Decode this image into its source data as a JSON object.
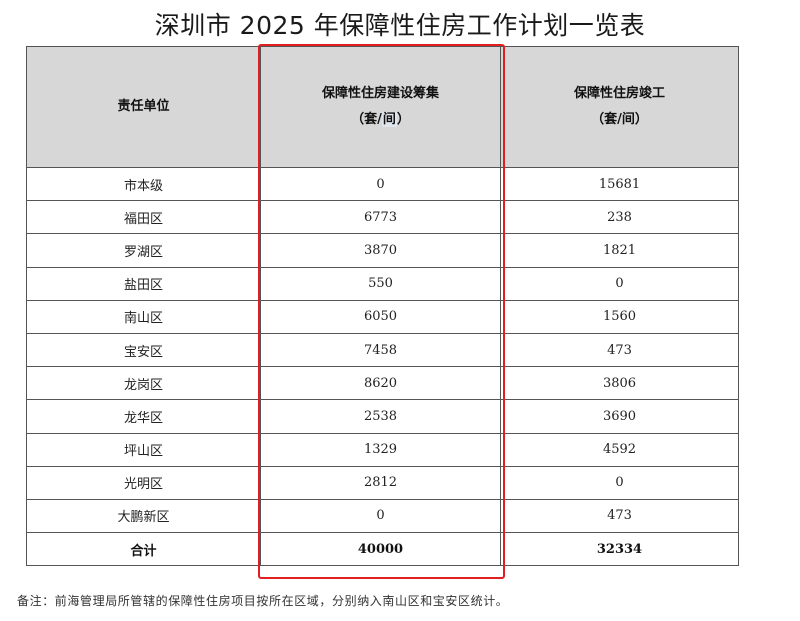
{
  "title": "深圳市 2025 年保障性住房工作计划一览表",
  "table": {
    "headers": {
      "unit": "责任单位",
      "construction_line1": "保障性住房建设筹集",
      "construction_line2_pre": "（套/",
      "construction_line2_hl": "间",
      "construction_line2_post": "）",
      "completion_line1": "保障性住房竣工",
      "completion_line2": "（套/间）"
    },
    "rows": [
      {
        "unit": "市本级",
        "construction": "0",
        "completion": "15681"
      },
      {
        "unit": "福田区",
        "construction": "6773",
        "completion": "238"
      },
      {
        "unit": "罗湖区",
        "construction": "3870",
        "completion": "1821"
      },
      {
        "unit": "盐田区",
        "construction": "550",
        "completion": "0"
      },
      {
        "unit": "南山区",
        "construction": "6050",
        "completion": "1560"
      },
      {
        "unit": "宝安区",
        "construction": "7458",
        "completion": "473"
      },
      {
        "unit": "龙岗区",
        "construction": "8620",
        "completion": "3806"
      },
      {
        "unit": "龙华区",
        "construction": "2538",
        "completion": "3690"
      },
      {
        "unit": "坪山区",
        "construction": "1329",
        "completion": "4592"
      },
      {
        "unit": "光明区",
        "construction": "2812",
        "completion": "0"
      },
      {
        "unit": "大鹏新区",
        "construction": "0",
        "completion": "473"
      }
    ],
    "total": {
      "unit": "合计",
      "construction": "40000",
      "completion": "32334"
    }
  },
  "note": "备注：前海管理局所管辖的保障性住房项目按所在区域，分别纳入南山区和宝安区统计。",
  "colors": {
    "highlight": "#e02020",
    "header_bg": "#d7d7d7"
  }
}
